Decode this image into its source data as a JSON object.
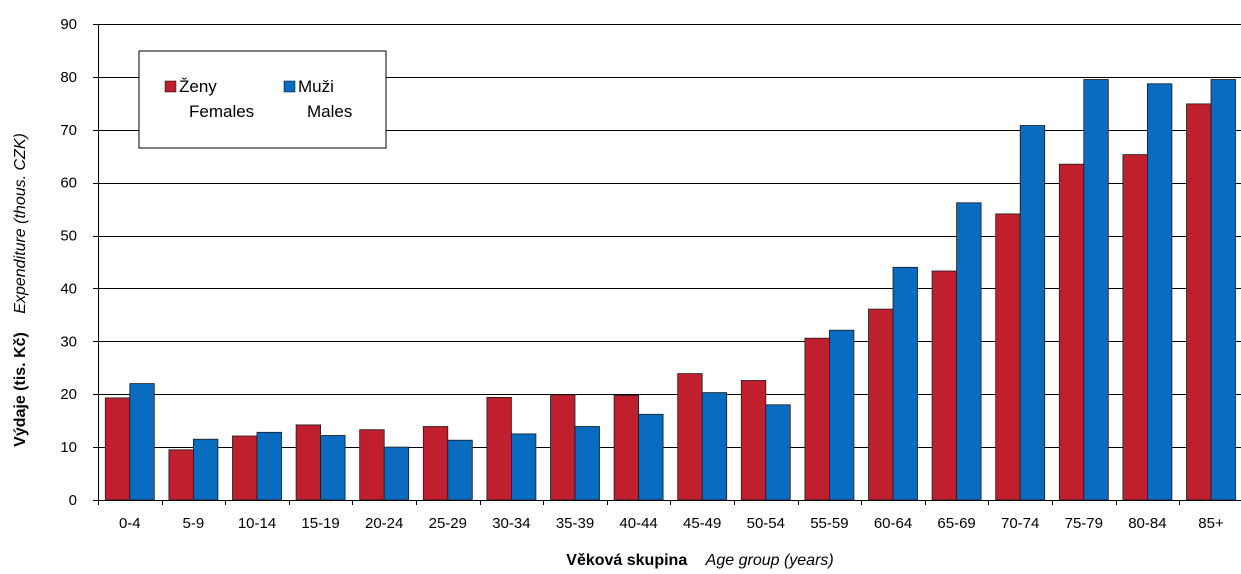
{
  "chart_data": {
    "type": "bar",
    "categories": [
      "0-4",
      "5-9",
      "10-14",
      "15-19",
      "20-24",
      "25-29",
      "30-34",
      "35-39",
      "40-44",
      "45-49",
      "50-54",
      "55-59",
      "60-64",
      "65-69",
      "70-74",
      "75-79",
      "80-84",
      "85+"
    ],
    "series": [
      {
        "name": "Ženy Females",
        "name_cz": "Ženy",
        "name_en": "Females",
        "color": "#c0202e",
        "values": [
          19.3,
          9.5,
          12.1,
          14.2,
          13.3,
          13.9,
          19.4,
          19.9,
          19.8,
          23.9,
          22.6,
          30.6,
          36.1,
          43.3,
          54.1,
          63.5,
          65.3,
          74.9
        ]
      },
      {
        "name": "Muži Males",
        "name_cz": "Muži",
        "name_en": "Males",
        "color": "#0a6cc0",
        "values": [
          22.0,
          11.5,
          12.8,
          12.2,
          10.0,
          11.3,
          12.5,
          13.9,
          16.2,
          20.3,
          18.0,
          32.1,
          44.0,
          56.2,
          70.8,
          79.5,
          78.7,
          79.5
        ]
      }
    ],
    "xlabel": {
      "bold": "Věková skupina",
      "italic": "Age group  (years)"
    },
    "ylabel": {
      "bold": "Výdaje (tis. Kč)",
      "italic": "Expenditure  (thous. CZK)"
    },
    "ylim": [
      0,
      90
    ],
    "yticks": [
      "0",
      "10",
      "20",
      "30",
      "40",
      "50",
      "60",
      "70",
      "80",
      "90"
    ],
    "grid": true,
    "legend_position": "top-left"
  }
}
